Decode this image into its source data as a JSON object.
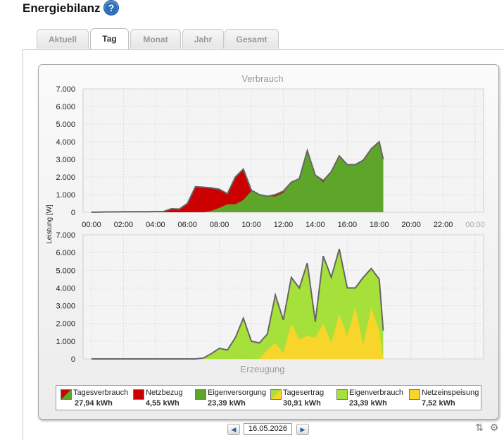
{
  "page": {
    "title": "Energiebilanz",
    "help_icon": "help-icon"
  },
  "tabs": [
    {
      "label": "Aktuell",
      "active": false
    },
    {
      "label": "Tag",
      "active": true
    },
    {
      "label": "Monat",
      "active": false
    },
    {
      "label": "Jahr",
      "active": false
    },
    {
      "label": "Gesamt",
      "active": false
    }
  ],
  "chart_data": [
    {
      "type": "area",
      "title": "Verbrauch",
      "ylabel": "Leistung [W]",
      "ylim": [
        0,
        7000
      ],
      "yticks": [
        "7.000",
        "6.000",
        "5.000",
        "4.000",
        "3.000",
        "2.000",
        "1.000",
        "0"
      ],
      "xticks": [
        "00:00",
        "02:00",
        "04:00",
        "06:00",
        "08:00",
        "10:00",
        "12:00",
        "14:00",
        "16:00",
        "18:00",
        "20:00",
        "22:00",
        "00:00"
      ],
      "xlim_hours": [
        0,
        24
      ],
      "grid": true,
      "series": [
        {
          "name": "Netzbezug",
          "color": "#cc0000",
          "x": [
            0,
            0.5,
            1,
            1.5,
            2,
            2.5,
            3,
            3.5,
            4,
            4.5,
            5,
            5.5,
            6,
            6.5,
            7,
            7.5,
            8,
            8.5,
            9,
            9.5,
            10,
            10.5,
            11,
            11.5,
            12,
            12.5,
            13,
            13.5,
            14,
            14.5,
            15,
            15.5,
            16,
            16.5,
            17,
            17.5,
            18,
            18.25
          ],
          "total": [
            0,
            10,
            20,
            20,
            30,
            30,
            30,
            30,
            40,
            40,
            200,
            180,
            500,
            1450,
            1420,
            1380,
            1300,
            1050,
            2000,
            2450,
            1250,
            1000,
            900,
            1000,
            1200,
            1700,
            1900,
            3500,
            2100,
            1800,
            2300,
            3200,
            2700,
            2700,
            2950,
            3600,
            4000,
            3000
          ],
          "eigen": [
            0,
            0,
            0,
            0,
            0,
            0,
            0,
            0,
            0,
            0,
            0,
            0,
            0,
            0,
            0,
            80,
            250,
            450,
            450,
            700,
            1200,
            1000,
            900,
            900,
            1100,
            1700,
            1900,
            3500,
            2100,
            1700,
            2300,
            3200,
            2700,
            2700,
            2950,
            3600,
            4000,
            3000
          ]
        }
      ]
    },
    {
      "type": "area",
      "title": "Erzeugung",
      "ylabel": "Leistung [W]",
      "ylim": [
        0,
        7000
      ],
      "yticks": [
        "7.000",
        "6.000",
        "5.000",
        "4.000",
        "3.000",
        "2.000",
        "1.000",
        "0"
      ],
      "grid": true,
      "series": [
        {
          "name": "Tagesertrag",
          "color": "#a6e03a"
        },
        {
          "name": "Netzeinspeisung",
          "color": "#f7d52a"
        }
      ]
    }
  ],
  "legend": [
    {
      "label": "Tagesverbrauch",
      "value": "27,94 kWh",
      "swatch": "split-red-green"
    },
    {
      "label": "Netzbezug",
      "value": "4,55 kWh",
      "swatch": "#cc0000"
    },
    {
      "label": "Eigenversorgung",
      "value": "23,39 kWh",
      "swatch": "#5ea62a"
    },
    {
      "label": "Tagesertrag",
      "value": "30,91 kWh",
      "swatch": "split-green-yellow"
    },
    {
      "label": "Eigenverbrauch",
      "value": "23,39 kWh",
      "swatch": "#a6e03a"
    },
    {
      "label": "Netzeinspeisung",
      "value": "7,52 kWh",
      "swatch": "#f7d52a"
    }
  ],
  "datenav": {
    "date": "16.05.2026",
    "prev": "prev-day-button",
    "next": "next-day-button"
  }
}
